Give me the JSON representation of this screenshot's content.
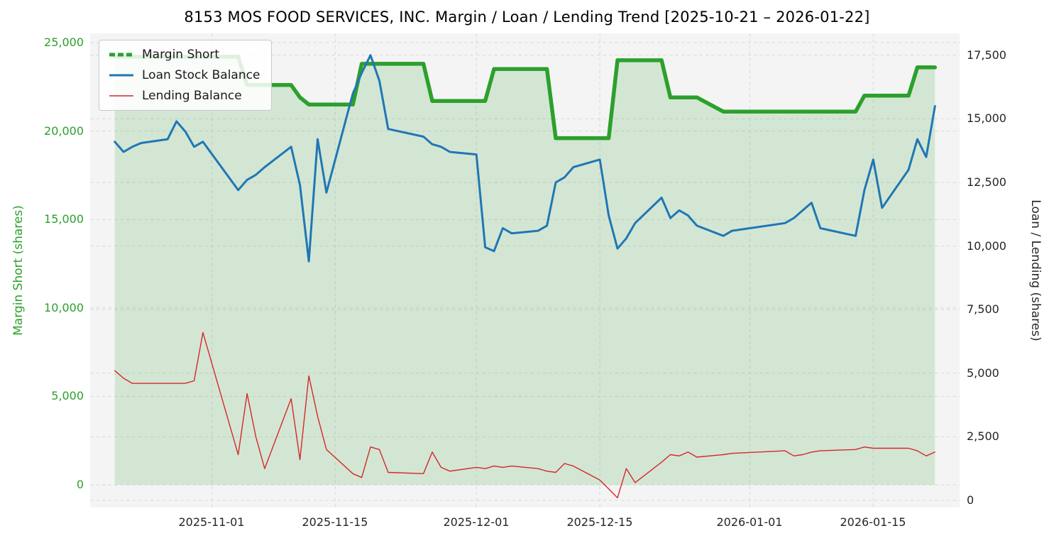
{
  "title": "8153 MOS FOOD SERVICES, INC. Margin / Loan / Lending Trend [2025-10-21 – 2026-01-22]",
  "axes": {
    "left_label": "Margin Short (shares)",
    "right_label": "Loan / Lending (shares)"
  },
  "colors": {
    "margin": "#2ca02c",
    "loan": "#1f77b4",
    "lending": "#d62728",
    "fill": "rgba(44,160,44,0.16)",
    "plot_bg": "#f4f4f5",
    "grid": "#d8d8d9",
    "tick": "#262626"
  },
  "chart_data": {
    "type": "line",
    "title": "8153 MOS FOOD SERVICES, INC. Margin / Loan / Lending Trend [2025-10-21 – 2026-01-22]",
    "x_axis": "date",
    "grid": true,
    "legend_position": "upper left",
    "ylabel_left": "Margin Short (shares)",
    "ylabel_right": "Loan / Lending (shares)",
    "ylim_left": [
      -1280,
      25520
    ],
    "ylim_right": [
      -280,
      18360
    ],
    "left_tick_values": [
      0,
      5000,
      10000,
      15000,
      20000,
      25000
    ],
    "right_tick_values": [
      0,
      2500,
      5000,
      7500,
      10000,
      12500,
      15000,
      17500
    ],
    "x_tick_dates": [
      "2025-11-01",
      "2025-11-15",
      "2025-12-01",
      "2025-12-15",
      "2026-01-01",
      "2026-01-15"
    ],
    "dates": [
      "2025-10-21",
      "2025-10-22",
      "2025-10-23",
      "2025-10-24",
      "2025-10-27",
      "2025-10-28",
      "2025-10-29",
      "2025-10-30",
      "2025-10-31",
      "2025-11-04",
      "2025-11-05",
      "2025-11-06",
      "2025-11-07",
      "2025-11-10",
      "2025-11-11",
      "2025-11-12",
      "2025-11-13",
      "2025-11-14",
      "2025-11-17",
      "2025-11-18",
      "2025-11-19",
      "2025-11-20",
      "2025-11-21",
      "2025-11-25",
      "2025-11-26",
      "2025-11-27",
      "2025-11-28",
      "2025-12-01",
      "2025-12-02",
      "2025-12-03",
      "2025-12-04",
      "2025-12-05",
      "2025-12-08",
      "2025-12-09",
      "2025-12-10",
      "2025-12-11",
      "2025-12-12",
      "2025-12-15",
      "2025-12-16",
      "2025-12-17",
      "2025-12-18",
      "2025-12-19",
      "2025-12-22",
      "2025-12-23",
      "2025-12-24",
      "2025-12-25",
      "2025-12-26",
      "2025-12-29",
      "2025-12-30",
      "2026-01-05",
      "2026-01-06",
      "2026-01-07",
      "2026-01-08",
      "2026-01-09",
      "2026-01-13",
      "2026-01-14",
      "2026-01-15",
      "2026-01-16",
      "2026-01-19",
      "2026-01-20",
      "2026-01-21",
      "2026-01-22"
    ],
    "series": [
      {
        "name": "Margin Short",
        "axis": "left",
        "color": "#2ca02c",
        "line_width": 5.5,
        "fill_to_zero": true,
        "values": [
          24200,
          24200,
          24200,
          24200,
          24200,
          24200,
          24200,
          24200,
          24200,
          24200,
          22600,
          22600,
          22600,
          22600,
          21900,
          21500,
          21500,
          21500,
          21500,
          23800,
          23800,
          23800,
          23800,
          23800,
          21700,
          21700,
          21700,
          21700,
          21700,
          23500,
          23500,
          23500,
          23500,
          23500,
          19600,
          19600,
          19600,
          19600,
          19600,
          24000,
          24000,
          24000,
          24000,
          21900,
          21900,
          21900,
          21900,
          21100,
          21100,
          21100,
          21100,
          21100,
          21100,
          21100,
          21100,
          22000,
          22000,
          22000,
          22000,
          23600,
          23600,
          23600
        ]
      },
      {
        "name": "Loan Stock Balance",
        "axis": "right",
        "color": "#1f77b4",
        "line_width": 3,
        "fill_to_zero": false,
        "values": [
          14100,
          13700,
          13900,
          14050,
          14200,
          14900,
          14500,
          13900,
          14100,
          12200,
          12600,
          12800,
          13100,
          13900,
          12400,
          9400,
          14200,
          12100,
          16000,
          16800,
          17500,
          16500,
          14600,
          14300,
          14000,
          13900,
          13700,
          13600,
          9950,
          9800,
          10700,
          10500,
          10600,
          10800,
          12500,
          12700,
          13100,
          13400,
          11200,
          9900,
          10300,
          10900,
          11900,
          11100,
          11400,
          11200,
          10800,
          10400,
          10600,
          10900,
          11100,
          11400,
          11700,
          10700,
          10400,
          12200,
          13400,
          11500,
          13000,
          14200,
          13500,
          15500
        ]
      },
      {
        "name": "Lending Balance",
        "axis": "right",
        "color": "#d62728",
        "line_width": 1.4,
        "fill_to_zero": false,
        "values": [
          5100,
          4800,
          4600,
          4600,
          4600,
          4600,
          4600,
          4700,
          6600,
          1800,
          4200,
          2500,
          1250,
          4000,
          1600,
          4900,
          3300,
          2000,
          1050,
          900,
          2100,
          2000,
          1100,
          1050,
          1900,
          1300,
          1150,
          1300,
          1250,
          1350,
          1300,
          1350,
          1250,
          1150,
          1100,
          1450,
          1350,
          800,
          450,
          100,
          1250,
          700,
          1500,
          1800,
          1750,
          1900,
          1700,
          1800,
          1850,
          1950,
          1750,
          1800,
          1900,
          1950,
          2000,
          2100,
          2050,
          2050,
          2050,
          1950,
          1750,
          1900
        ]
      }
    ]
  }
}
